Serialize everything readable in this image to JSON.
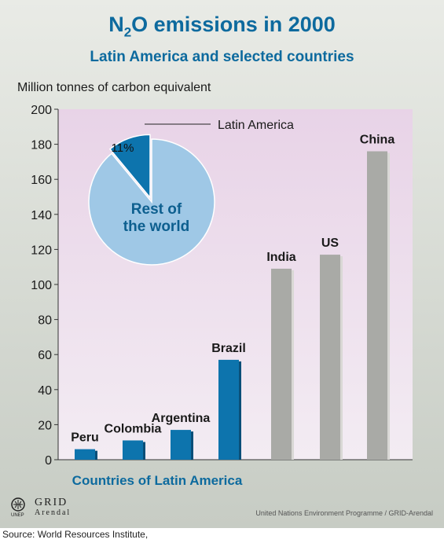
{
  "header": {
    "title_main": "N",
    "title_sub": "2",
    "title_rest": "O emissions in 2000",
    "subtitle": "Latin America and selected countries"
  },
  "chart_data": [
    {
      "type": "bar",
      "ylabel": "Million tonnes of carbon equivalent",
      "xlabel": "Countries of Latin America",
      "ylim": [
        0,
        200
      ],
      "yticks": [
        0,
        20,
        40,
        60,
        80,
        100,
        120,
        140,
        160,
        180,
        200
      ],
      "grid": false,
      "categories": [
        "Peru",
        "Colombia",
        "Argentina",
        "Brazil",
        "India",
        "US",
        "China"
      ],
      "values": [
        6,
        11,
        17,
        57,
        109,
        117,
        176
      ],
      "groups": [
        "Latin America",
        "Latin America",
        "Latin America",
        "Latin America",
        "Other",
        "Other",
        "Other"
      ]
    },
    {
      "type": "pie",
      "slices": [
        {
          "label": "Latin America",
          "value": 11,
          "data_label": "11%"
        },
        {
          "label": "Rest of the world",
          "value": 89,
          "data_label": "Rest of\nthe world"
        }
      ]
    }
  ],
  "colors": {
    "latin_bar": "#0d74ad",
    "other_bar": "#a9aaa6",
    "pie_rest": "#9fc8e6",
    "pie_latin": "#0d74ad",
    "plot_bg_top": "#e8d3e7",
    "plot_bg_bottom": "#f3ecf3",
    "title": "#0d6a9e"
  },
  "footer": {
    "logo_unep": "UNEP",
    "logo_grid": "GRID",
    "logo_arendal": "Arendal",
    "credit": "United Nations Environment Programme / GRID-Arendal",
    "source": "Source: World Resources Institute,"
  }
}
